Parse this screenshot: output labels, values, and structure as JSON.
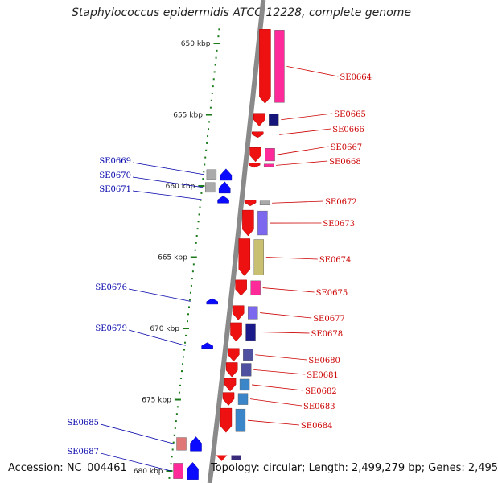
{
  "title": "Staphylococcus epidermidis ATCC 12228, complete genome",
  "accession_text": "Accession: NC_004461",
  "topology_text": "Topology: circular; Length: 2,499,279 bp; Genes: 2,495",
  "colors": {
    "forward_gene": "#ee1111",
    "reverse_gene": "#0a0aff",
    "forward_label": "#cc0000",
    "reverse_label": "#0000aa",
    "ruler_tick": "#1a7a1a",
    "backbone": "#8a8a8a"
  },
  "ruler_labels": [
    {
      "kbp": 650,
      "label": "650 kbp"
    },
    {
      "kbp": 655,
      "label": "655 kbp"
    },
    {
      "kbp": 660,
      "label": "660 kbp"
    },
    {
      "kbp": 665,
      "label": "665 kbp"
    },
    {
      "kbp": 670,
      "label": "670 kbp"
    },
    {
      "kbp": 675,
      "label": "675 kbp"
    },
    {
      "kbp": 680,
      "label": "680 kbp"
    }
  ],
  "forward_genes": [
    {
      "id": "SE0664",
      "start_kbp": 649.0,
      "end_kbp": 654.2,
      "cog_color": "#ff2a9a"
    },
    {
      "id": "SE0665",
      "start_kbp": 654.9,
      "end_kbp": 655.8,
      "cog_color": "#16167a"
    },
    {
      "id": "SE0666",
      "start_kbp": 656.2,
      "end_kbp": 656.6,
      "cog_color": ""
    },
    {
      "id": "SE0667",
      "start_kbp": 657.3,
      "end_kbp": 658.3,
      "cog_color": "#ff2a9a"
    },
    {
      "id": "SE0668",
      "start_kbp": 658.4,
      "end_kbp": 658.7,
      "cog_color": "#ff2a9a"
    },
    {
      "id": "SE0672",
      "start_kbp": 661.0,
      "end_kbp": 661.4,
      "cog_color": "#aaaaaa"
    },
    {
      "id": "SE0673",
      "start_kbp": 661.7,
      "end_kbp": 663.5,
      "cog_color": "#7b68ee"
    },
    {
      "id": "SE0674",
      "start_kbp": 663.7,
      "end_kbp": 666.3,
      "cog_color": "#c8c070"
    },
    {
      "id": "SE0675",
      "start_kbp": 666.6,
      "end_kbp": 667.7,
      "cog_color": "#ff2a9a"
    },
    {
      "id": "SE0677",
      "start_kbp": 668.4,
      "end_kbp": 669.4,
      "cog_color": "#7b68ee"
    },
    {
      "id": "SE0678",
      "start_kbp": 669.6,
      "end_kbp": 670.9,
      "cog_color": "#1a1a8a"
    },
    {
      "id": "SE0680",
      "start_kbp": 671.4,
      "end_kbp": 672.3,
      "cog_color": "#5050a0"
    },
    {
      "id": "SE0681",
      "start_kbp": 672.4,
      "end_kbp": 673.4,
      "cog_color": "#5050a0"
    },
    {
      "id": "SE0682",
      "start_kbp": 673.5,
      "end_kbp": 674.4,
      "cog_color": "#3a86c8"
    },
    {
      "id": "SE0683",
      "start_kbp": 674.5,
      "end_kbp": 675.4,
      "cog_color": "#3a86c8"
    },
    {
      "id": "SE0684",
      "start_kbp": 675.6,
      "end_kbp": 677.3,
      "cog_color": "#3a86c8"
    }
  ],
  "reverse_genes": [
    {
      "id": "SE0669",
      "start_kbp": 658.8,
      "end_kbp": 659.6,
      "cog_color": "#aaaaaa"
    },
    {
      "id": "SE0670",
      "start_kbp": 659.7,
      "end_kbp": 660.5,
      "cog_color": "#aaaaaa"
    },
    {
      "id": "SE0671",
      "start_kbp": 660.7,
      "end_kbp": 661.2,
      "cog_color": ""
    },
    {
      "id": "SE0676",
      "start_kbp": 667.9,
      "end_kbp": 668.3,
      "cog_color": ""
    },
    {
      "id": "SE0679",
      "start_kbp": 671.0,
      "end_kbp": 671.4,
      "cog_color": ""
    },
    {
      "id": "SE0685",
      "start_kbp": 677.6,
      "end_kbp": 678.6,
      "cog_color": "#e07878"
    },
    {
      "id": "SE0687",
      "start_kbp": 679.4,
      "end_kbp": 680.6,
      "cog_color": "#ff2a9a"
    }
  ],
  "extra_forward": [
    {
      "start_kbp": 678.9,
      "end_kbp": 679.2,
      "cog_color": "#3a2a7a"
    }
  ]
}
